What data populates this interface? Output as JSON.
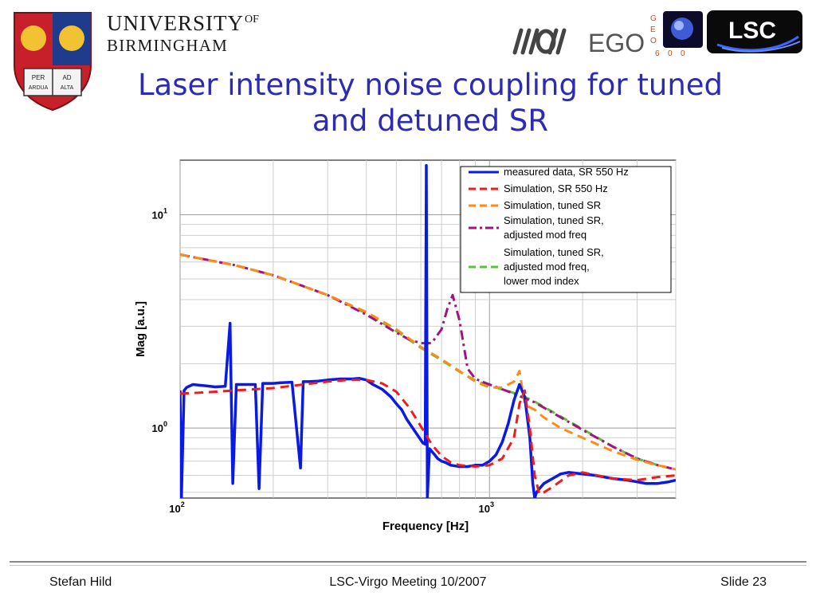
{
  "header": {
    "university_line1": "UNIVERSITY",
    "university_of": "OF",
    "university_line2": "BIRMINGHAM",
    "crest_text": [
      "PER",
      "AD",
      "ARDUA",
      "ALTA"
    ],
    "ego_text": "EGO",
    "geo_letters": [
      "G",
      "E",
      "O",
      "6",
      "0",
      "0"
    ],
    "lsc_text": "LSC"
  },
  "slide": {
    "title_line1": "Laser intensity noise coupling for tuned",
    "title_line2": "and detuned SR"
  },
  "colors": {
    "title": "#2b2bb3",
    "measured": "#0a1ae6",
    "sim550": "#ee1c1c",
    "tuned": "#ff8a1a",
    "adjusted": "#a0147e",
    "lowermod": "#5cc23a"
  },
  "chart_data": {
    "type": "line",
    "xlabel": "Frequency [Hz]",
    "ylabel": "Mag [a.u.]",
    "x_scale": "log",
    "y_scale": "log",
    "xlim": [
      100,
      4000
    ],
    "ylim": [
      0.47,
      18
    ],
    "x_ticks": [
      {
        "value": 100,
        "base": "10",
        "exp": "2"
      },
      {
        "value": 1000,
        "base": "10",
        "exp": "3"
      }
    ],
    "y_ticks": [
      {
        "value": 1,
        "base": "10",
        "exp": "0"
      },
      {
        "value": 10,
        "base": "10",
        "exp": "1"
      }
    ],
    "grid": true,
    "legend_position": "top-right",
    "series": [
      {
        "name": "measured data, SR 550 Hz",
        "style": "solid",
        "color_key": "measured",
        "x": [
          100,
          101,
          103,
          105,
          110,
          120,
          130,
          140,
          145,
          148,
          152,
          160,
          175,
          180,
          185,
          190,
          200,
          210,
          230,
          245,
          250,
          260,
          280,
          300,
          330,
          360,
          380,
          400,
          420,
          450,
          480,
          500,
          520,
          540,
          570,
          600,
          610,
          620,
          625,
          630,
          640,
          660,
          680,
          700,
          720,
          750,
          800,
          850,
          900,
          950,
          1000,
          1050,
          1100,
          1150,
          1200,
          1250,
          1300,
          1350,
          1380,
          1400,
          1420,
          1450,
          1500,
          1600,
          1700,
          1800,
          2000,
          2200,
          2500,
          2800,
          3000,
          3200,
          3500,
          3800,
          4000
        ],
        "y": [
          1.5,
          0.47,
          1.5,
          1.55,
          1.6,
          1.58,
          1.56,
          1.57,
          3.1,
          0.55,
          1.6,
          1.6,
          1.6,
          0.52,
          1.62,
          1.62,
          1.62,
          1.63,
          1.64,
          0.65,
          1.65,
          1.65,
          1.66,
          1.68,
          1.7,
          1.7,
          1.71,
          1.68,
          1.6,
          1.52,
          1.4,
          1.3,
          1.22,
          1.1,
          0.98,
          0.88,
          0.85,
          0.84,
          17,
          0.47,
          0.8,
          0.76,
          0.72,
          0.7,
          0.69,
          0.67,
          0.66,
          0.66,
          0.67,
          0.67,
          0.7,
          0.75,
          0.86,
          1.05,
          1.35,
          1.6,
          1.4,
          0.9,
          0.55,
          0.47,
          0.5,
          0.52,
          0.55,
          0.58,
          0.61,
          0.62,
          0.61,
          0.6,
          0.58,
          0.57,
          0.56,
          0.55,
          0.55,
          0.56,
          0.57
        ]
      },
      {
        "name": "Simulation, SR 550 Hz",
        "style": "dashed",
        "color_key": "sim550",
        "x": [
          100,
          120,
          150,
          200,
          250,
          300,
          350,
          400,
          450,
          500,
          550,
          600,
          650,
          700,
          750,
          800,
          900,
          1000,
          1100,
          1200,
          1250,
          1300,
          1350,
          1400,
          1450,
          1500,
          1600,
          1800,
          2000,
          2500,
          3000,
          3500,
          4000
        ],
        "y": [
          1.45,
          1.47,
          1.5,
          1.54,
          1.6,
          1.65,
          1.68,
          1.68,
          1.62,
          1.48,
          1.25,
          1.02,
          0.84,
          0.74,
          0.69,
          0.67,
          0.66,
          0.67,
          0.72,
          0.9,
          1.3,
          1.5,
          1.0,
          0.6,
          0.49,
          0.5,
          0.53,
          0.6,
          0.62,
          0.58,
          0.57,
          0.59,
          0.6
        ]
      },
      {
        "name": "Simulation, tuned SR",
        "style": "dashed",
        "color_key": "tuned",
        "x": [
          100,
          150,
          200,
          300,
          400,
          500,
          600,
          700,
          800,
          900,
          1000,
          1100,
          1200,
          1250,
          1300,
          1350,
          1400,
          1500,
          1700,
          2000,
          2500,
          3000,
          3500,
          4000
        ],
        "y": [
          6.5,
          5.8,
          5.2,
          4.2,
          3.5,
          2.9,
          2.4,
          2.1,
          1.85,
          1.65,
          1.55,
          1.55,
          1.65,
          1.85,
          1.3,
          1.25,
          1.22,
          1.12,
          1.0,
          0.9,
          0.78,
          0.71,
          0.67,
          0.64
        ]
      },
      {
        "name": "Simulation, tuned SR, adjusted mod freq",
        "style": "dashdot",
        "color_key": "adjusted",
        "x": [
          100,
          150,
          200,
          300,
          400,
          500,
          550,
          600,
          650,
          700,
          730,
          760,
          800,
          850,
          900,
          1000,
          1100,
          1200,
          1300,
          1400,
          1600,
          2000,
          2500,
          3000,
          3500,
          4000
        ],
        "y": [
          6.5,
          5.8,
          5.2,
          4.2,
          3.4,
          2.8,
          2.6,
          2.5,
          2.5,
          2.9,
          3.6,
          4.2,
          3.2,
          1.9,
          1.7,
          1.6,
          1.52,
          1.45,
          1.38,
          1.32,
          1.18,
          0.98,
          0.82,
          0.72,
          0.67,
          0.64
        ]
      },
      {
        "name": "Simulation, tuned SR, adjusted mod freq, lower mod index",
        "style": "dashed",
        "color_key": "lowermod",
        "x": [
          100,
          150,
          200,
          300,
          400,
          500,
          600,
          700,
          800,
          900,
          1000,
          1100,
          1200,
          1300,
          1400,
          1600,
          2000,
          2500,
          3000,
          3500,
          4000
        ],
        "y": [
          6.5,
          5.8,
          5.2,
          4.2,
          3.45,
          2.85,
          2.38,
          2.08,
          1.84,
          1.67,
          1.58,
          1.52,
          1.46,
          1.4,
          1.33,
          1.19,
          0.99,
          0.82,
          0.72,
          0.67,
          0.64
        ]
      }
    ]
  },
  "footer": {
    "left": "Stefan Hild",
    "center": "LSC-Virgo Meeting 10/2007",
    "right": "Slide 23"
  }
}
